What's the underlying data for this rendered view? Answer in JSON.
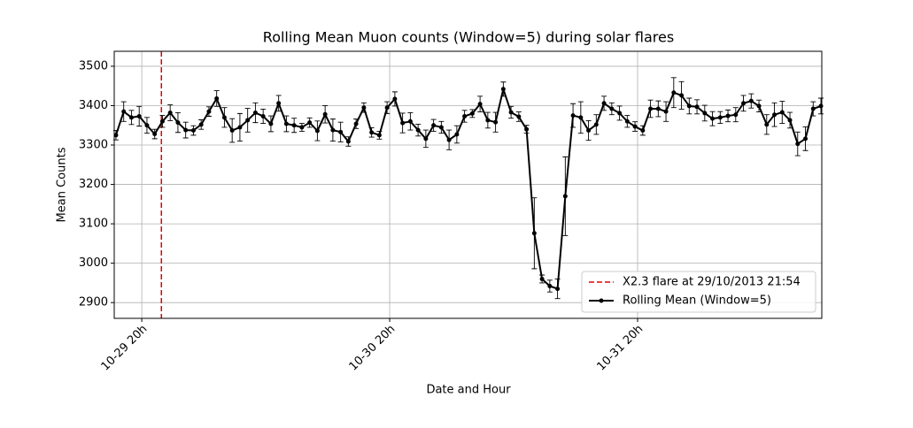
{
  "chart_data": {
    "type": "line",
    "title": "Rolling Mean Muon counts (Window=5) during solar flares",
    "x_label": "Date and Hour",
    "y_label": "Mean Counts",
    "x": [
      "10-29 17:30",
      "10-29 18:15",
      "10-29 19:00",
      "10-29 19:45",
      "10-29 20:30",
      "10-29 21:15",
      "10-29 22:00",
      "10-29 22:45",
      "10-29 23:30",
      "10-30 00:15",
      "10-30 01:00",
      "10-30 01:45",
      "10-30 02:30",
      "10-30 03:15",
      "10-30 04:00",
      "10-30 04:45",
      "10-30 05:30",
      "10-30 06:15",
      "10-30 07:00",
      "10-30 07:45",
      "10-30 08:30",
      "10-30 09:15",
      "10-30 10:00",
      "10-30 10:45",
      "10-30 11:30",
      "10-30 12:15",
      "10-30 13:00",
      "10-30 13:45",
      "10-30 14:30",
      "10-30 15:15",
      "10-30 16:00",
      "10-30 16:45",
      "10-30 17:30",
      "10-30 18:15",
      "10-30 19:00",
      "10-30 19:45",
      "10-30 20:30",
      "10-30 21:15",
      "10-30 22:00",
      "10-30 22:45",
      "10-30 23:30",
      "10-31 00:15",
      "10-31 01:00",
      "10-31 01:45",
      "10-31 02:30",
      "10-31 03:15",
      "10-31 04:00",
      "10-31 04:45",
      "10-31 05:30",
      "10-31 06:15",
      "10-31 07:00",
      "10-31 07:45",
      "10-31 08:30",
      "10-31 09:15",
      "10-31 10:00",
      "10-31 10:45",
      "10-31 11:30",
      "10-31 12:15",
      "10-31 13:00",
      "10-31 13:45",
      "10-31 14:30",
      "10-31 15:15",
      "10-31 16:00",
      "10-31 16:45",
      "10-31 17:30",
      "10-31 18:15",
      "10-31 19:00",
      "10-31 19:45",
      "10-31 20:30",
      "10-31 21:15",
      "10-31 22:00",
      "10-31 22:45",
      "10-31 23:30",
      "11-01 00:15",
      "11-01 01:00",
      "11-01 01:45",
      "11-01 02:30",
      "11-01 03:15",
      "11-01 04:00",
      "11-01 04:45",
      "11-01 05:30",
      "11-01 06:15",
      "11-01 07:00",
      "11-01 07:45",
      "11-01 08:30",
      "11-01 09:15",
      "11-01 10:00",
      "11-01 10:45",
      "11-01 11:30",
      "11-01 12:15",
      "11-01 13:00",
      "11-01 13:45"
    ],
    "series": [
      {
        "name": "Rolling Mean (Window=5)",
        "color": "#000000",
        "values": [
          3325,
          3385,
          3370,
          3373,
          3350,
          3328,
          3360,
          3382,
          3357,
          3338,
          3337,
          3352,
          3385,
          3418,
          3370,
          3337,
          3345,
          3363,
          3382,
          3373,
          3354,
          3406,
          3354,
          3350,
          3345,
          3357,
          3336,
          3378,
          3338,
          3333,
          3309,
          3354,
          3395,
          3332,
          3325,
          3395,
          3417,
          3356,
          3360,
          3338,
          3316,
          3350,
          3345,
          3313,
          3327,
          3373,
          3380,
          3404,
          3363,
          3358,
          3442,
          3383,
          3372,
          3340,
          3076,
          2960,
          2942,
          2935,
          3170,
          3375,
          3370,
          3337,
          3352,
          3406,
          3392,
          3381,
          3360,
          3347,
          3337,
          3392,
          3392,
          3385,
          3433,
          3426,
          3399,
          3397,
          3381,
          3367,
          3370,
          3374,
          3377,
          3406,
          3412,
          3399,
          3352,
          3377,
          3383,
          3363,
          3303,
          3316,
          3392,
          3399
        ],
        "errors": [
          12,
          25,
          18,
          25,
          20,
          12,
          15,
          20,
          25,
          20,
          12,
          12,
          12,
          20,
          25,
          30,
          35,
          30,
          25,
          18,
          20,
          20,
          20,
          18,
          10,
          12,
          25,
          22,
          28,
          25,
          12,
          12,
          12,
          12,
          10,
          15,
          18,
          25,
          22,
          15,
          22,
          15,
          15,
          25,
          22,
          15,
          10,
          20,
          20,
          25,
          18,
          15,
          12,
          10,
          90,
          10,
          15,
          25,
          100,
          30,
          40,
          25,
          25,
          18,
          15,
          18,
          15,
          12,
          12,
          22,
          20,
          25,
          38,
          35,
          20,
          18,
          20,
          18,
          15,
          15,
          18,
          20,
          18,
          15,
          25,
          30,
          28,
          20,
          30,
          30,
          18,
          20
        ]
      }
    ],
    "vline": {
      "x": "10-29 21:54",
      "label": "X2.3 flare at 29/10/2013 21:54",
      "color": "#e00000"
    },
    "xlim": [
      "10-29 17:20",
      "11-01 13:50"
    ],
    "xticks": [
      "10-29 20h",
      "10-30 20h",
      "10-31 20h"
    ],
    "ylim": [
      2860,
      3538
    ],
    "yticks": [
      2900,
      3000,
      3100,
      3200,
      3300,
      3400,
      3500
    ],
    "grid": true,
    "legend": "lower right"
  }
}
